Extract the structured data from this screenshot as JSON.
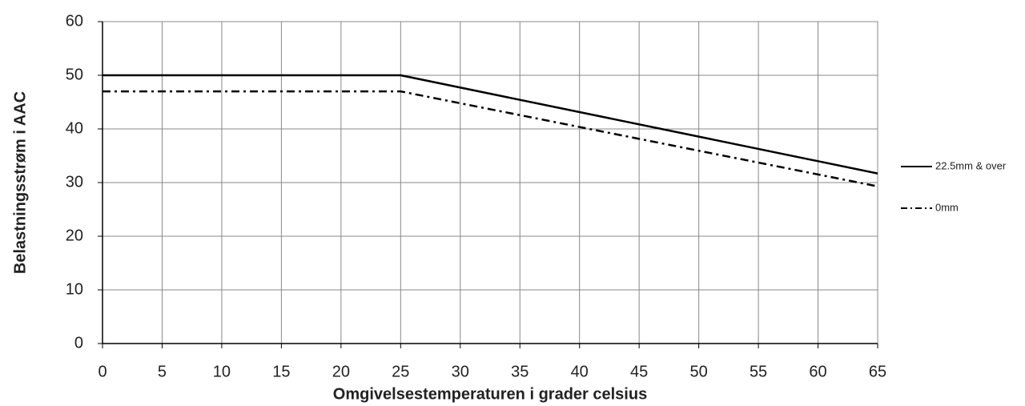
{
  "chart_data": {
    "type": "line",
    "x_label": "Omgivelsestemperaturen i grader celsius",
    "y_label": "Belastningsstrøm i AAC",
    "x": [
      0,
      25,
      65
    ],
    "series": [
      {
        "name": "22.5mm & over",
        "color": "#000000",
        "line_style": "solid",
        "values": [
          50,
          50,
          31.7
        ]
      },
      {
        "name": "0mm",
        "color": "#000000",
        "line_style": "dashdot",
        "values": [
          47,
          47,
          29.3
        ]
      }
    ],
    "xlim": [
      0,
      65
    ],
    "xticks": [
      0,
      5,
      10,
      15,
      20,
      25,
      30,
      35,
      40,
      45,
      50,
      55,
      60,
      65
    ],
    "ylim": [
      0,
      60
    ],
    "yticks": [
      0,
      10,
      20,
      30,
      40,
      50,
      60
    ],
    "grid": true,
    "legend": "right"
  }
}
